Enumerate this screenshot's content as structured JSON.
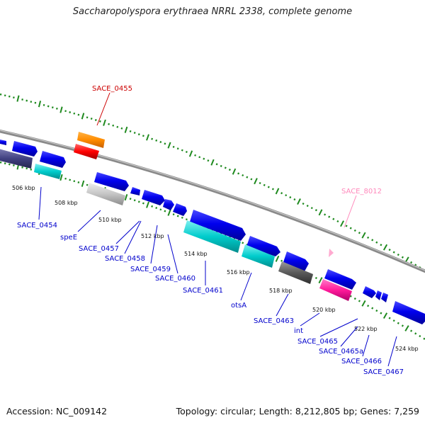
{
  "title": "Saccharopolyspora erythraea NRRL 2338, complete genome",
  "footer": {
    "accession": "Accession: NC_009142",
    "topology": "Topology: circular; Length: 8,212,805 bp; Genes: 7,259"
  },
  "colors": {
    "backbone": "#8a8a8a",
    "forward_cds": "#0000ee",
    "reverse_cds": "#00c8c8",
    "rna": "#ff8c00",
    "highlight": "#ff0000",
    "gray_gene": "#c8c8c8",
    "dark_gray_gene": "#606060",
    "pink_gene": "#ff20a0",
    "dark_blue_gene": "#404080",
    "label_blue": "#0000cc",
    "label_red": "#cc0000",
    "label_pink": "#ff88bb",
    "tick_green": "#008000"
  },
  "ticks": [
    "506 kbp",
    "508 kbp",
    "510 kbp",
    "512 kbp",
    "514 kbp",
    "516 kbp",
    "518 kbp",
    "520 kbp",
    "522 kbp",
    "524 kbp"
  ],
  "labels": [
    "SACE_0455",
    "SACE_8012",
    "SACE_0454",
    "speE",
    "SACE_0457",
    "SACE_0458",
    "SACE_0459",
    "SACE_0460",
    "SACE_0461",
    "otsA",
    "SACE_0463",
    "int",
    "SACE_0465",
    "SACE_0465a",
    "SACE_0466",
    "SACE_0467"
  ]
}
